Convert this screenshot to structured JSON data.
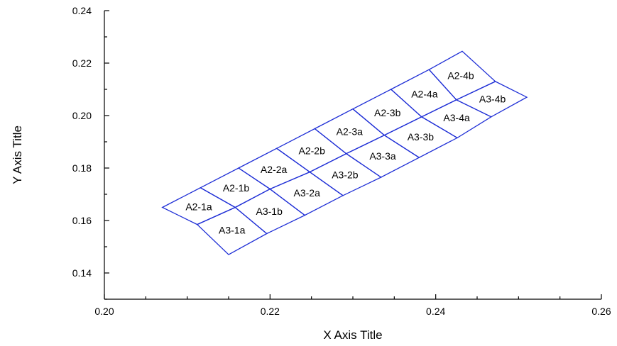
{
  "chart_data": {
    "type": "scatter",
    "title": "",
    "xlabel": "X Axis Title",
    "ylabel": "Y Axis Title",
    "xlim": [
      0.2,
      0.26
    ],
    "ylim": [
      0.13,
      0.24
    ],
    "x_major_ticks": [
      0.2,
      0.22,
      0.24,
      0.26
    ],
    "x_tick_labels": [
      "0.20",
      "0.22",
      "0.24",
      "0.26"
    ],
    "y_major_ticks": [
      0.14,
      0.16,
      0.18,
      0.2,
      0.22,
      0.24
    ],
    "y_tick_labels": [
      "0.14",
      "0.16",
      "0.18",
      "0.20",
      "0.22",
      "0.24"
    ],
    "grid": false,
    "line_color": "#1f2fd6",
    "mesh": {
      "row_A2": [
        [
          0.207,
          0.165
        ],
        [
          0.2116,
          0.1725
        ],
        [
          0.2162,
          0.18
        ],
        [
          0.2208,
          0.1875
        ],
        [
          0.2254,
          0.195
        ],
        [
          0.23,
          0.2025
        ],
        [
          0.2346,
          0.21
        ],
        [
          0.2392,
          0.2175
        ],
        [
          0.2432,
          0.2245
        ]
      ],
      "row_mid": [
        [
          0.2112,
          0.1585
        ],
        [
          0.2158,
          0.165
        ],
        [
          0.22,
          0.172
        ],
        [
          0.2248,
          0.1785
        ],
        [
          0.2292,
          0.1855
        ],
        [
          0.2338,
          0.1925
        ],
        [
          0.2383,
          0.1995
        ],
        [
          0.2425,
          0.206
        ],
        [
          0.2472,
          0.213
        ]
      ],
      "row_A3": [
        [
          0.215,
          0.147
        ],
        [
          0.2196,
          0.155
        ],
        [
          0.2242,
          0.162
        ],
        [
          0.2288,
          0.1695
        ],
        [
          0.2334,
          0.1765
        ],
        [
          0.238,
          0.184
        ],
        [
          0.2426,
          0.1915
        ],
        [
          0.2467,
          0.1995
        ],
        [
          0.251,
          0.207
        ]
      ]
    },
    "cells": [
      {
        "label": "A2-1a",
        "row": "A2",
        "index": 0
      },
      {
        "label": "A2-1b",
        "row": "A2",
        "index": 1
      },
      {
        "label": "A2-2a",
        "row": "A2",
        "index": 2
      },
      {
        "label": "A2-2b",
        "row": "A2",
        "index": 3
      },
      {
        "label": "A2-3a",
        "row": "A2",
        "index": 4
      },
      {
        "label": "A2-3b",
        "row": "A2",
        "index": 5
      },
      {
        "label": "A2-4a",
        "row": "A2",
        "index": 6
      },
      {
        "label": "A2-4b",
        "row": "A2",
        "index": 7
      },
      {
        "label": "A3-1a",
        "row": "A3",
        "index": 0
      },
      {
        "label": "A3-1b",
        "row": "A3",
        "index": 1
      },
      {
        "label": "A3-2a",
        "row": "A3",
        "index": 2
      },
      {
        "label": "A3-2b",
        "row": "A3",
        "index": 3
      },
      {
        "label": "A3-3a",
        "row": "A3",
        "index": 4
      },
      {
        "label": "A3-3b",
        "row": "A3",
        "index": 5
      },
      {
        "label": "A3-4a",
        "row": "A3",
        "index": 6
      },
      {
        "label": "A3-4b",
        "row": "A3",
        "index": 7
      }
    ]
  }
}
